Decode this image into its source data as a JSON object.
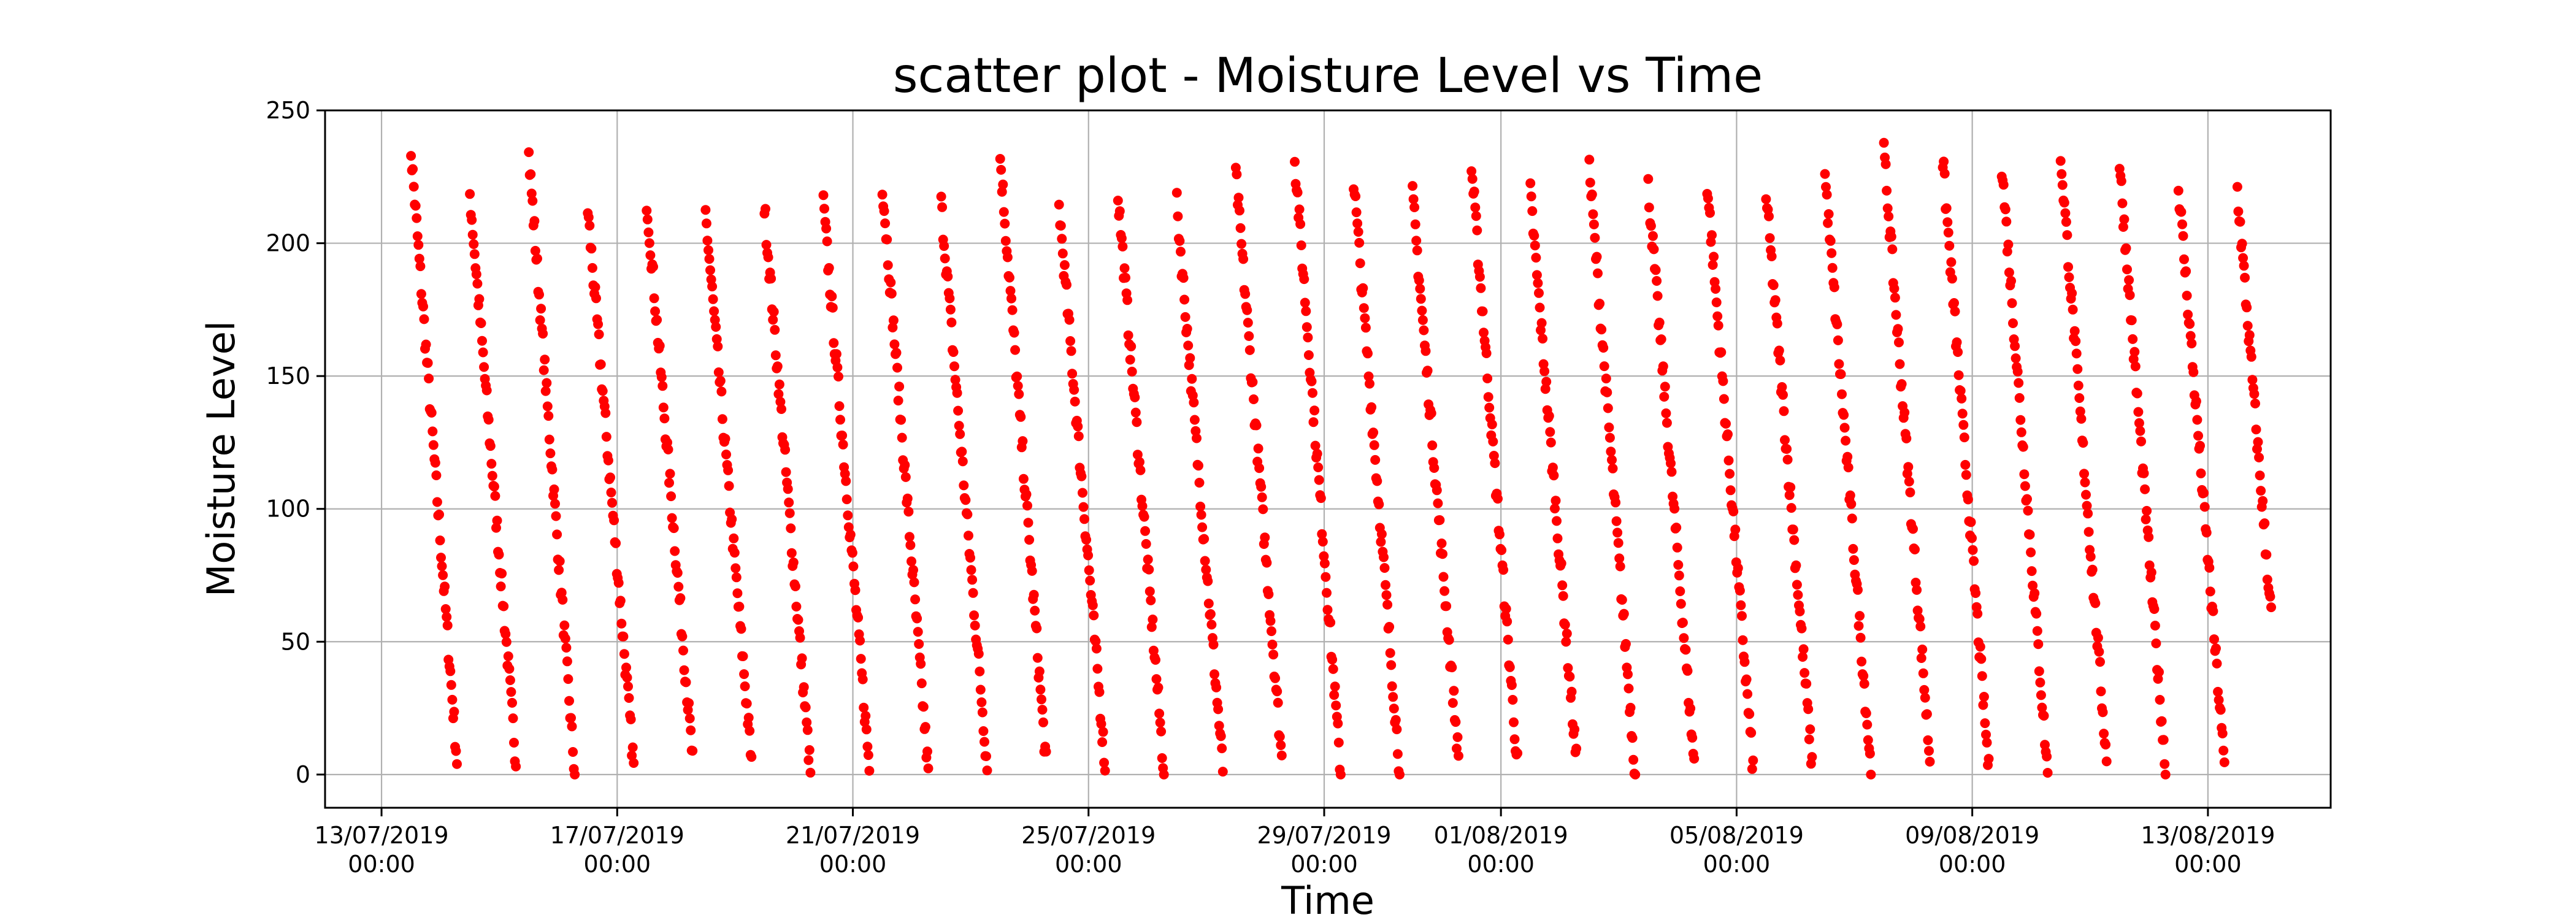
{
  "chart_data": {
    "type": "scatter",
    "title": "scatter plot - Moisture Level vs Time",
    "xlabel": "Time",
    "ylabel": "Moisture Level",
    "marker_color": "#ff0000",
    "grid": true,
    "legend": "none",
    "ylim": [
      -12.5,
      250
    ],
    "xlim": [
      "2019-07-12 01:00",
      "2019-08-15 02:00"
    ],
    "y_ticks": [
      0,
      50,
      100,
      150,
      200,
      250
    ],
    "x_ticks": [
      {
        "value": "2019-07-13 00:00",
        "date": "13/07/2019",
        "time": "00:00"
      },
      {
        "value": "2019-07-17 00:00",
        "date": "17/07/2019",
        "time": "00:00"
      },
      {
        "value": "2019-07-21 00:00",
        "date": "21/07/2019",
        "time": "00:00"
      },
      {
        "value": "2019-07-25 00:00",
        "date": "25/07/2019",
        "time": "00:00"
      },
      {
        "value": "2019-07-29 00:00",
        "date": "29/07/2019",
        "time": "00:00"
      },
      {
        "value": "2019-08-01 00:00",
        "date": "01/08/2019",
        "time": "00:00"
      },
      {
        "value": "2019-08-05 00:00",
        "date": "05/08/2019",
        "time": "00:00"
      },
      {
        "value": "2019-08-09 00:00",
        "date": "09/08/2019",
        "time": "00:00"
      },
      {
        "value": "2019-08-13 00:00",
        "date": "13/08/2019",
        "time": "00:00"
      }
    ],
    "series": [
      {
        "pattern": "sawtooth",
        "start": "2019-07-13 12:00",
        "end": "2019-08-14 02:00",
        "cycle_hours": 24,
        "max": 240,
        "min": 0,
        "points_per_cycle": 50,
        "description": "moisture rises to ~240 at start of each daily cycle then decreases to ~0"
      }
    ]
  }
}
